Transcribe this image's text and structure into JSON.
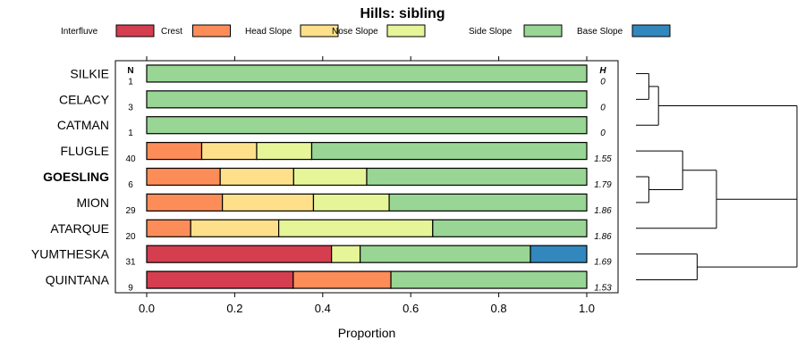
{
  "chart_data": {
    "type": "bar",
    "orientation": "horizontal",
    "stacked": true,
    "title": "Hills: sibling",
    "xlabel": "Proportion",
    "ylabel": "",
    "xlim": [
      0,
      1
    ],
    "x_ticks": [
      "0.0",
      "0.2",
      "0.4",
      "0.6",
      "0.8",
      "1.0"
    ],
    "n_header": "N",
    "h_header": "H",
    "highlighted_category": "GOESLING",
    "legend_position": "top",
    "legend": [
      {
        "name": "Interfluve",
        "color": "#d53e4f"
      },
      {
        "name": "Crest",
        "color": "#fc8d59"
      },
      {
        "name": "Head Slope",
        "color": "#fee08b"
      },
      {
        "name": "Nose Slope",
        "color": "#e6f598"
      },
      {
        "name": "Side Slope",
        "color": "#99d594"
      },
      {
        "name": "Base Slope",
        "color": "#3288bd"
      }
    ],
    "categories": [
      "SILKIE",
      "CELACY",
      "CATMAN",
      "FLUGLE",
      "GOESLING",
      "MION",
      "ATARQUE",
      "YUMTHESKA",
      "QUINTANA"
    ],
    "n_values": [
      "1",
      "3",
      "1",
      "40",
      "6",
      "29",
      "20",
      "31",
      "9"
    ],
    "h_values": [
      "0",
      "0",
      "0",
      "1.55",
      "1.79",
      "1.86",
      "1.86",
      "1.69",
      "1.53"
    ],
    "series": [
      {
        "name": "Interfluve",
        "values": [
          0,
          0,
          0,
          0,
          0,
          0,
          0,
          0.42,
          0.333
        ]
      },
      {
        "name": "Crest",
        "values": [
          0,
          0,
          0,
          0.125,
          0.167,
          0.172,
          0.1,
          0,
          0.222
        ]
      },
      {
        "name": "Head Slope",
        "values": [
          0,
          0,
          0,
          0.125,
          0.167,
          0.207,
          0.2,
          0,
          0
        ]
      },
      {
        "name": "Nose Slope",
        "values": [
          0,
          0,
          0,
          0.125,
          0.166,
          0.172,
          0.35,
          0.065,
          0
        ]
      },
      {
        "name": "Side Slope",
        "values": [
          1,
          1,
          1,
          0.625,
          0.5,
          0.449,
          0.35,
          0.387,
          0.445
        ]
      },
      {
        "name": "Base Slope",
        "values": [
          0,
          0,
          0,
          0,
          0,
          0,
          0,
          0.128,
          0
        ]
      }
    ],
    "dendrogram": {
      "type": "dendrogram",
      "leaf_order": [
        "SILKIE",
        "CELACY",
        "CATMAN",
        "FLUGLE",
        "GOESLING",
        "MION",
        "ATARQUE",
        "YUMTHESKA",
        "QUINTANA"
      ],
      "merges": [
        {
          "a": "SILKIE",
          "b": "CELACY",
          "height": 0.08
        },
        {
          "a": "GOESLING",
          "b": "MION",
          "height": 0.08
        },
        {
          "a": "[SILKIE+CELACY]",
          "b": "CATMAN",
          "height": 0.14
        },
        {
          "a": "FLUGLE",
          "b": "[GOESLING+MION]",
          "height": 0.29
        },
        {
          "a": "[FLUGLE+GOESLING+MION]",
          "b": "ATARQUE",
          "height": 0.5
        },
        {
          "a": "YUMTHESKA",
          "b": "QUINTANA",
          "height": 0.38
        },
        {
          "a": "[FLUGLE..ATARQUE]",
          "b": "[YUMTHESKA+QUINTANA]",
          "height": 1.0
        },
        {
          "a": "[SILKIE+CELACY+CATMAN]",
          "b": "[FLUGLE..QUINTANA]",
          "height": 1.0
        }
      ]
    }
  }
}
